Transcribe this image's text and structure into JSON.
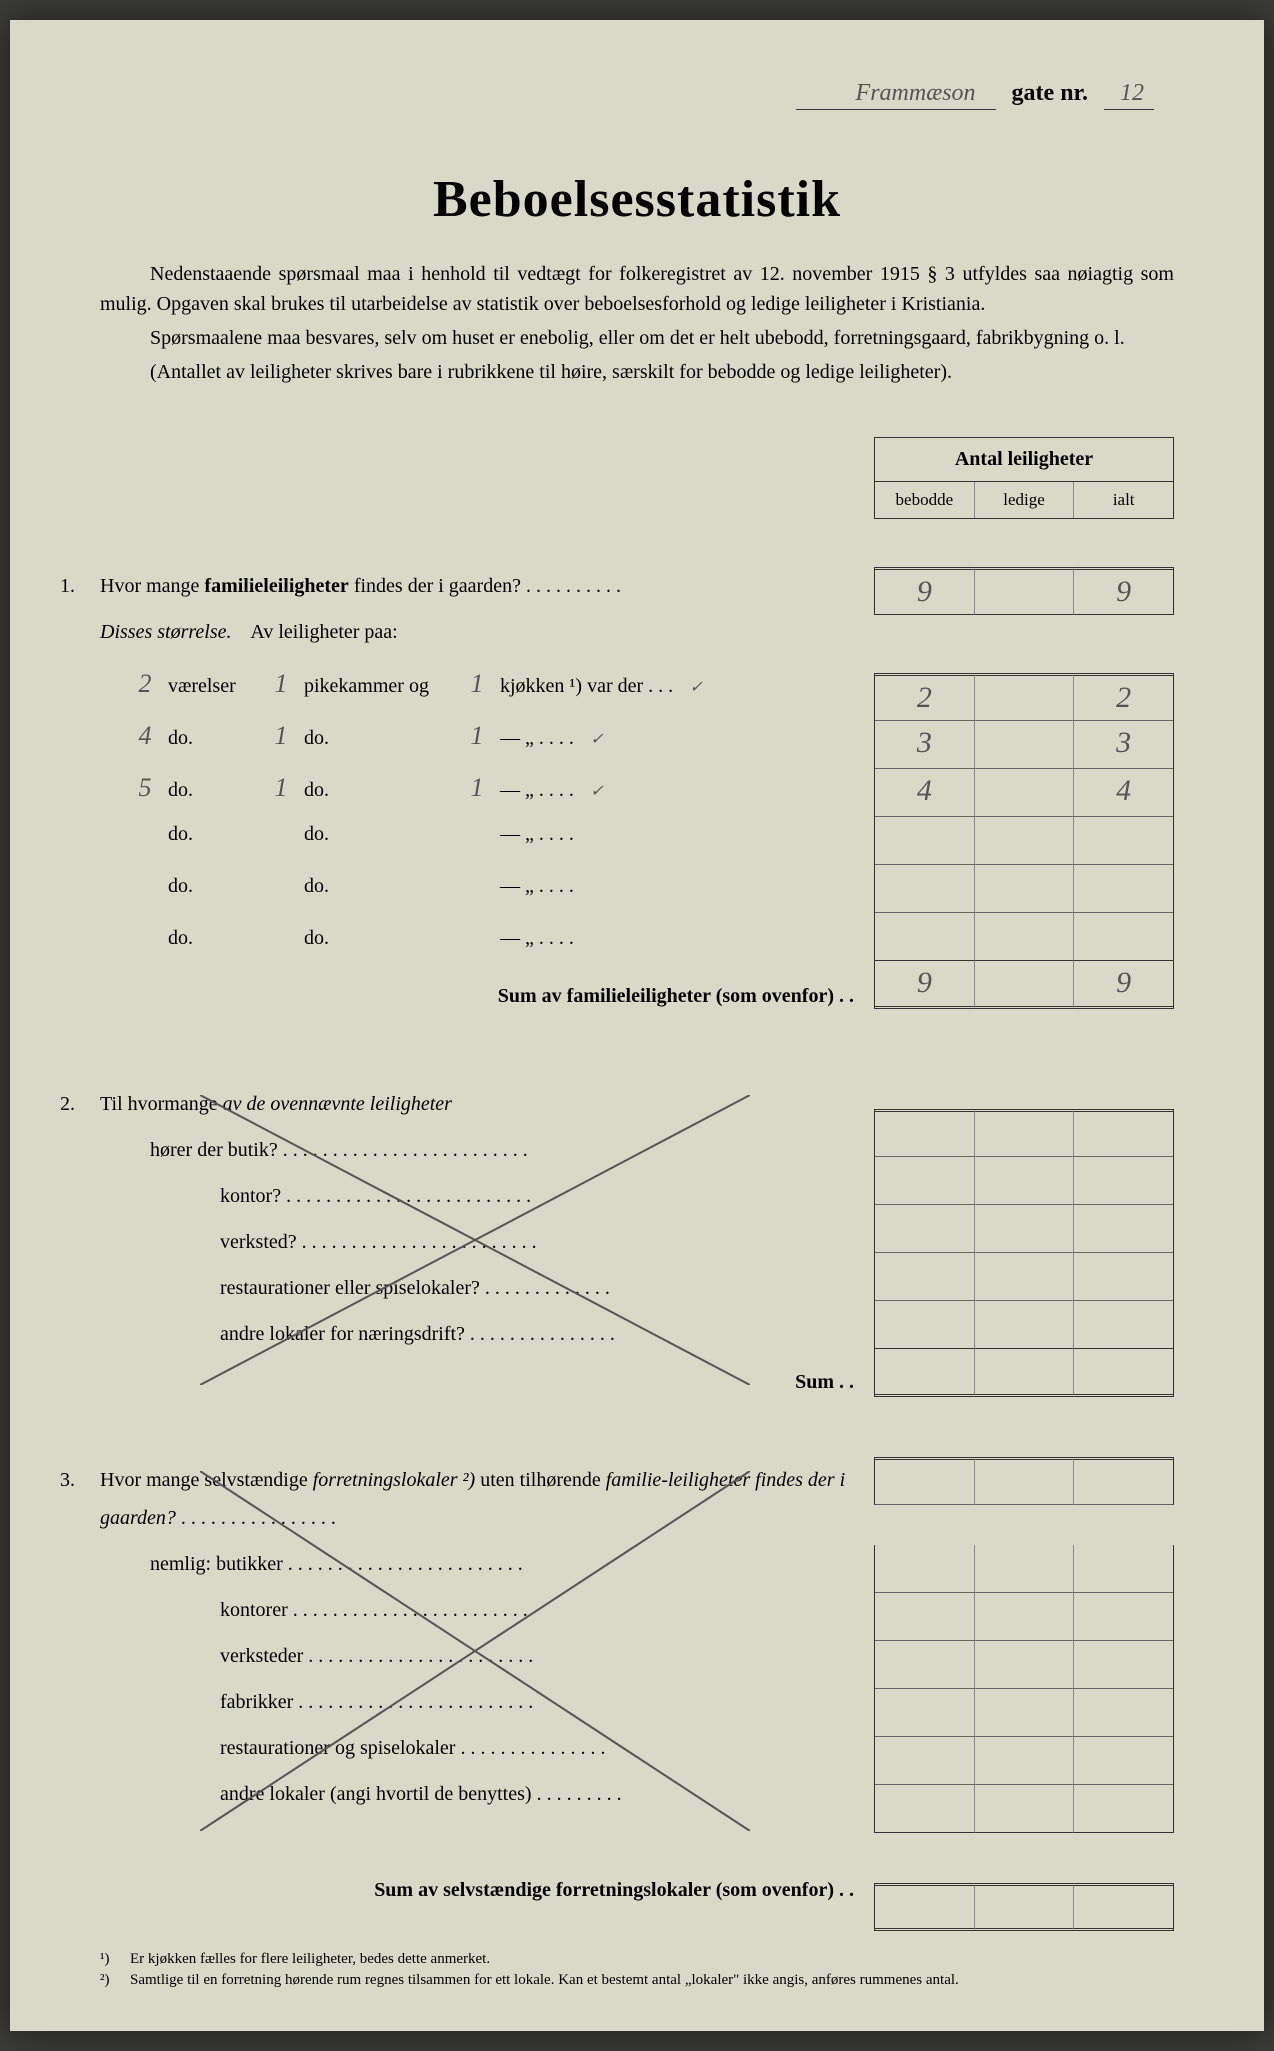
{
  "header": {
    "street_name": "Frammæson",
    "gate_label": "gate nr.",
    "gate_number": "12"
  },
  "title": "Beboelsesstatistik",
  "intro": {
    "p1": "Nedenstaaende spørsmaal maa i henhold til vedtægt for folkeregistret av 12. november 1915 § 3 utfyldes saa nøiagtig som mulig. Opgaven skal brukes til utarbeidelse av statistik over beboelsesforhold og ledige leiligheter i Kristiania.",
    "p2": "Spørsmaalene maa besvares, selv om huset er enebolig, eller om det er helt ubebodd, forretningsgaard, fabrikbygning o. l.",
    "p3": "(Antallet av leiligheter skrives bare i rubrikkene til høire, særskilt for bebodde og ledige leiligheter)."
  },
  "table": {
    "header": "Antal leiligheter",
    "cols": {
      "c1": "bebodde",
      "c2": "ledige",
      "c3": "ialt"
    },
    "r_total1": {
      "c1": "9",
      "c2": "",
      "c3": "9"
    },
    "r_s1": {
      "c1": "2",
      "c2": "",
      "c3": "2"
    },
    "r_s2": {
      "c1": "3",
      "c2": "",
      "c3": "3"
    },
    "r_s3": {
      "c1": "4",
      "c2": "",
      "c3": "4"
    },
    "r_sum": {
      "c1": "9",
      "c2": "",
      "c3": "9"
    }
  },
  "q1": {
    "num": "1.",
    "text_a": "Hvor mange ",
    "text_b": "familieleiligheter",
    "text_c": " findes der i gaarden?",
    "sub_label": "Disses størrelse.",
    "sub_text": "Av leiligheter paa:",
    "rows": [
      {
        "vaer": "2",
        "pike": "1",
        "kjok": "1",
        "label_a": "værelser",
        "label_b": "pikekammer og",
        "label_c": "kjøkken ¹) var der . . .",
        "tick": "✓"
      },
      {
        "vaer": "4",
        "pike": "1",
        "kjok": "1",
        "label_a": "do.",
        "label_b": "do.",
        "label_c": "—        „     . . . .",
        "tick": "✓"
      },
      {
        "vaer": "5",
        "pike": "1",
        "kjok": "1",
        "label_a": "do.",
        "label_b": "do.",
        "label_c": "—        „     . . . .",
        "tick": "✓"
      },
      {
        "vaer": "",
        "pike": "",
        "kjok": "",
        "label_a": "do.",
        "label_b": "do.",
        "label_c": "—        „     . . . .",
        "tick": ""
      },
      {
        "vaer": "",
        "pike": "",
        "kjok": "",
        "label_a": "do.",
        "label_b": "do.",
        "label_c": "—        „     . . . .",
        "tick": ""
      },
      {
        "vaer": "",
        "pike": "",
        "kjok": "",
        "label_a": "do.",
        "label_b": "do.",
        "label_c": "—        „     . . . .",
        "tick": ""
      }
    ],
    "sum_label": "Sum av familieleiligheter",
    "sum_suffix": " (som ovenfor) . ."
  },
  "q2": {
    "num": "2.",
    "text_a": "Til hvormange ",
    "text_b": "av de ovennævnte leiligheter",
    "lines": [
      "hører der butik?",
      "kontor?",
      "verksted?",
      "restaurationer eller spiselokaler?",
      "andre lokaler for næringsdrift?"
    ],
    "sum": "Sum . ."
  },
  "q3": {
    "num": "3.",
    "text_a": "Hvor mange selvstændige ",
    "text_b": "forretningslokaler ²)",
    "text_c": " uten tilhørende ",
    "text_d": "familie-leiligheter findes der i gaarden?",
    "lead": "nemlig: butikker",
    "lines": [
      "kontorer",
      "verksteder",
      "fabrikker",
      "restaurationer og spiselokaler",
      "andre lokaler (angi hvortil de benyttes)"
    ],
    "sum_label": "Sum av selvstændige forretningslokaler",
    "sum_suffix": " (som ovenfor) . ."
  },
  "footnotes": {
    "f1_num": "¹)",
    "f1": "Er kjøkken fælles for flere leiligheter, bedes dette anmerket.",
    "f2_num": "²)",
    "f2": "Samtlige til en forretning hørende rum regnes tilsammen for ett lokale. Kan et bestemt antal „lokaler\" ikke angis, anføres rummenes antal."
  }
}
